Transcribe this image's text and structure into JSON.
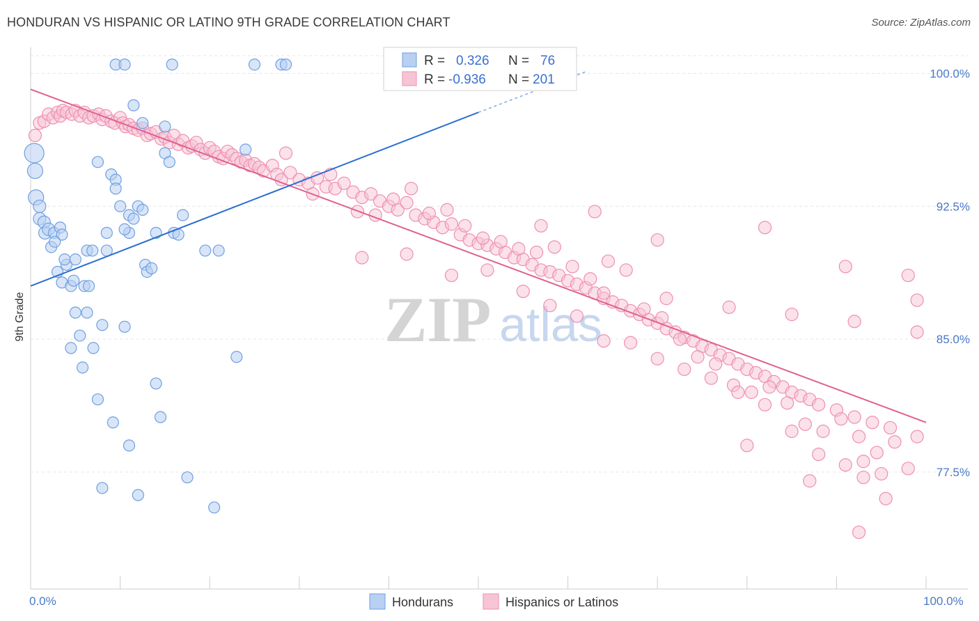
{
  "title": "HONDURAN VS HISPANIC OR LATINO 9TH GRADE CORRELATION CHART",
  "source": "Source: ZipAtlas.com",
  "watermark": {
    "zip": "ZIP",
    "atlas": "atlas"
  },
  "colors": {
    "hondurans": "#6f9fe0",
    "hondurans_fill": "#b8d0f2",
    "hondurans_line": "#2a6fd0",
    "hispanics": "#ee8fb0",
    "hispanics_fill": "#f7c4d6",
    "hispanics_line": "#e0608e",
    "grid": "#e6e6e6",
    "tick_text": "#4a78c6"
  },
  "legend": {
    "row1": {
      "r_label": "R =",
      "r_value": "0.326",
      "n_label": "N =",
      "n_value": "76"
    },
    "row2": {
      "r_label": "R =",
      "r_value": "-0.936",
      "n_label": "N =",
      "n_value": "201"
    }
  },
  "bottom_legend": {
    "hondurans": "Hondurans",
    "hispanics": "Hispanics or Latinos"
  },
  "chart_data": {
    "type": "scatter",
    "title": "HONDURAN VS HISPANIC OR LATINO 9TH GRADE CORRELATION CHART",
    "xlabel": "",
    "ylabel": "9th Grade",
    "xlim": [
      0,
      100
    ],
    "ylim": [
      70.9,
      101.0
    ],
    "x_tick_labels": [
      "0.0%",
      "100.0%"
    ],
    "y_ticks": [
      100.0,
      92.5,
      85.0,
      77.5
    ],
    "y_tick_labels": [
      "100.0%",
      "92.5%",
      "85.0%",
      "77.5%"
    ],
    "series": [
      {
        "name": "Hondurans",
        "r": 0.326,
        "n": 76,
        "trend": {
          "x": [
            0,
            50
          ],
          "y": [
            88.0,
            97.8
          ]
        },
        "trend_dashed": {
          "x": [
            50,
            62
          ],
          "y": [
            97.8,
            100.1
          ]
        },
        "points": [
          [
            0.4,
            95.5,
            14
          ],
          [
            0.5,
            94.5,
            11
          ],
          [
            0.6,
            93.0,
            11
          ],
          [
            1.0,
            92.5,
            9
          ],
          [
            1.0,
            91.8,
            9
          ],
          [
            1.5,
            91.6,
            9
          ],
          [
            1.6,
            91.0,
            9
          ],
          [
            2.0,
            91.2,
            9
          ],
          [
            2.3,
            90.2,
            8
          ],
          [
            2.6,
            91.0,
            8
          ],
          [
            3.3,
            91.3,
            8
          ],
          [
            3.5,
            90.9,
            8
          ],
          [
            2.7,
            90.5,
            8
          ],
          [
            3.0,
            88.8,
            8
          ],
          [
            4.0,
            89.2,
            8
          ],
          [
            3.8,
            89.5,
            8
          ],
          [
            3.5,
            88.2,
            8
          ],
          [
            4.5,
            88.0,
            8
          ],
          [
            4.8,
            88.3,
            8
          ],
          [
            6.0,
            88.0,
            8
          ],
          [
            6.5,
            88.0,
            8
          ],
          [
            5.0,
            89.5,
            8
          ],
          [
            6.3,
            90.0,
            8
          ],
          [
            6.9,
            90.0,
            8
          ],
          [
            7.5,
            95.0,
            8
          ],
          [
            8.5,
            91.0,
            8
          ],
          [
            8.5,
            90.0,
            8
          ],
          [
            9.0,
            94.3,
            8
          ],
          [
            9.5,
            94.0,
            8
          ],
          [
            9.5,
            93.5,
            8
          ],
          [
            10.0,
            92.5,
            8
          ],
          [
            11.0,
            92.0,
            8
          ],
          [
            11.5,
            91.8,
            8
          ],
          [
            12.0,
            92.5,
            8
          ],
          [
            12.5,
            92.3,
            8
          ],
          [
            12.8,
            89.2,
            8
          ],
          [
            13.0,
            88.8,
            8
          ],
          [
            13.5,
            89.0,
            8
          ],
          [
            14.0,
            91.0,
            8
          ],
          [
            15.0,
            95.5,
            8
          ],
          [
            15.5,
            95.0,
            8
          ],
          [
            16.0,
            91.0,
            8
          ],
          [
            16.5,
            90.9,
            8
          ],
          [
            17.0,
            92.0,
            8
          ],
          [
            19.5,
            90.0,
            8
          ],
          [
            21.0,
            90.0,
            8
          ],
          [
            23.0,
            84.0,
            8
          ],
          [
            24.0,
            95.7,
            8
          ],
          [
            11.0,
            91.0,
            8
          ],
          [
            10.5,
            91.2,
            8
          ],
          [
            5.0,
            86.5,
            8
          ],
          [
            5.5,
            85.2,
            8
          ],
          [
            6.3,
            86.5,
            8
          ],
          [
            8.0,
            85.8,
            8
          ],
          [
            10.5,
            85.7,
            8
          ],
          [
            4.5,
            84.5,
            8
          ],
          [
            7.0,
            84.5,
            8
          ],
          [
            5.8,
            83.4,
            8
          ],
          [
            14.0,
            82.5,
            8
          ],
          [
            7.5,
            81.6,
            8
          ],
          [
            14.5,
            80.6,
            8
          ],
          [
            9.2,
            80.3,
            8
          ],
          [
            11.0,
            79.0,
            8
          ],
          [
            12.0,
            76.2,
            8
          ],
          [
            20.5,
            75.5,
            8
          ],
          [
            8.0,
            76.6,
            8
          ],
          [
            17.5,
            77.2,
            8
          ],
          [
            15.0,
            97.0,
            8
          ],
          [
            12.5,
            97.2,
            8
          ],
          [
            11.5,
            98.2,
            8
          ],
          [
            9.5,
            100.5,
            8
          ],
          [
            10.5,
            100.5,
            8
          ],
          [
            15.8,
            100.5,
            8
          ],
          [
            25.0,
            100.5,
            8
          ],
          [
            28.0,
            100.5,
            8
          ],
          [
            28.5,
            100.5,
            8
          ]
        ]
      },
      {
        "name": "Hispanics or Latinos",
        "r": -0.936,
        "n": 201,
        "trend": {
          "x": [
            0,
            100
          ],
          "y": [
            99.1,
            80.3
          ]
        },
        "points": [
          [
            0.5,
            96.5
          ],
          [
            1.0,
            97.2
          ],
          [
            1.5,
            97.3
          ],
          [
            2.0,
            97.7
          ],
          [
            2.5,
            97.5
          ],
          [
            3.0,
            97.8
          ],
          [
            3.3,
            97.6
          ],
          [
            3.6,
            97.9
          ],
          [
            4.0,
            97.8
          ],
          [
            4.6,
            97.7
          ],
          [
            5.0,
            97.9
          ],
          [
            5.5,
            97.6
          ],
          [
            6.0,
            97.8
          ],
          [
            6.5,
            97.5
          ],
          [
            7.0,
            97.6
          ],
          [
            7.6,
            97.7
          ],
          [
            8.0,
            97.4
          ],
          [
            8.4,
            97.6
          ],
          [
            9.0,
            97.3
          ],
          [
            9.4,
            97.2
          ],
          [
            10.0,
            97.5
          ],
          [
            10.3,
            97.2
          ],
          [
            10.6,
            97.0
          ],
          [
            11.0,
            97.1
          ],
          [
            11.5,
            96.9
          ],
          [
            12.0,
            96.8
          ],
          [
            12.5,
            96.9
          ],
          [
            13.0,
            96.5
          ],
          [
            13.4,
            96.6
          ],
          [
            14.0,
            96.7
          ],
          [
            14.6,
            96.3
          ],
          [
            15.0,
            96.4
          ],
          [
            15.5,
            96.1
          ],
          [
            16.0,
            96.5
          ],
          [
            16.5,
            96.0
          ],
          [
            17.0,
            96.2
          ],
          [
            17.6,
            95.8
          ],
          [
            18.0,
            95.9
          ],
          [
            18.5,
            96.1
          ],
          [
            19.0,
            95.7
          ],
          [
            19.5,
            95.5
          ],
          [
            20.0,
            95.8
          ],
          [
            20.5,
            95.6
          ],
          [
            21.0,
            95.3
          ],
          [
            21.5,
            95.2
          ],
          [
            22.0,
            95.6
          ],
          [
            22.5,
            95.4
          ],
          [
            23.0,
            95.2
          ],
          [
            23.5,
            95.0
          ],
          [
            24.0,
            95.1
          ],
          [
            24.5,
            94.8
          ],
          [
            25.0,
            94.9
          ],
          [
            25.5,
            94.7
          ],
          [
            26.0,
            94.5
          ],
          [
            27.0,
            94.8
          ],
          [
            27.5,
            94.3
          ],
          [
            28.0,
            94.0
          ],
          [
            29.0,
            94.4
          ],
          [
            30.0,
            94.0
          ],
          [
            31.0,
            93.8
          ],
          [
            32.0,
            94.1
          ],
          [
            33.0,
            93.6
          ],
          [
            34.0,
            93.5
          ],
          [
            35.0,
            93.8
          ],
          [
            36.0,
            93.3
          ],
          [
            37.0,
            93.0
          ],
          [
            38.0,
            93.2
          ],
          [
            39.0,
            92.8
          ],
          [
            40.0,
            92.5
          ],
          [
            41.0,
            92.3
          ],
          [
            42.0,
            92.7
          ],
          [
            43.0,
            92.0
          ],
          [
            44.0,
            91.8
          ],
          [
            45.0,
            91.6
          ],
          [
            46.0,
            91.3
          ],
          [
            47.0,
            91.5
          ],
          [
            48.0,
            90.9
          ],
          [
            49.0,
            90.6
          ],
          [
            50.0,
            90.4
          ],
          [
            51.0,
            90.3
          ],
          [
            52.0,
            90.1
          ],
          [
            53.0,
            89.9
          ],
          [
            54.0,
            89.6
          ],
          [
            55.0,
            89.5
          ],
          [
            56.0,
            89.2
          ],
          [
            57.0,
            88.9
          ],
          [
            58.0,
            88.8
          ],
          [
            59.0,
            88.6
          ],
          [
            60.0,
            88.3
          ],
          [
            61.0,
            88.1
          ],
          [
            62.0,
            87.9
          ],
          [
            63.0,
            87.6
          ],
          [
            64.0,
            87.3
          ],
          [
            65.0,
            87.1
          ],
          [
            66.0,
            86.9
          ],
          [
            67.0,
            86.6
          ],
          [
            68.0,
            86.4
          ],
          [
            69.0,
            86.1
          ],
          [
            70.0,
            85.9
          ],
          [
            71.0,
            85.6
          ],
          [
            72.0,
            85.4
          ],
          [
            73.0,
            85.1
          ],
          [
            74.0,
            84.9
          ],
          [
            75.0,
            84.6
          ],
          [
            76.0,
            84.4
          ],
          [
            77.0,
            84.1
          ],
          [
            78.0,
            83.9
          ],
          [
            79.0,
            83.6
          ],
          [
            80.0,
            83.3
          ],
          [
            81.0,
            83.1
          ],
          [
            82.0,
            82.9
          ],
          [
            83.0,
            82.6
          ],
          [
            84.0,
            82.3
          ],
          [
            85.0,
            82.0
          ],
          [
            86.0,
            81.8
          ],
          [
            87.0,
            81.6
          ],
          [
            88.0,
            81.3
          ],
          [
            90.0,
            81.0
          ],
          [
            92.0,
            80.6
          ],
          [
            94.0,
            80.3
          ],
          [
            96.0,
            80.0
          ],
          [
            28.5,
            95.5
          ],
          [
            31.5,
            93.2
          ],
          [
            33.5,
            94.3
          ],
          [
            36.5,
            92.2
          ],
          [
            38.5,
            92.0
          ],
          [
            40.5,
            92.9
          ],
          [
            42.5,
            93.5
          ],
          [
            44.5,
            92.1
          ],
          [
            46.5,
            92.3
          ],
          [
            48.5,
            91.4
          ],
          [
            50.5,
            90.7
          ],
          [
            52.5,
            90.5
          ],
          [
            54.5,
            90.1
          ],
          [
            56.5,
            89.9
          ],
          [
            58.5,
            90.2
          ],
          [
            60.5,
            89.1
          ],
          [
            62.5,
            88.4
          ],
          [
            64.5,
            89.4
          ],
          [
            66.5,
            88.9
          ],
          [
            68.5,
            86.7
          ],
          [
            70.5,
            86.2
          ],
          [
            72.5,
            85.0
          ],
          [
            74.5,
            84.0
          ],
          [
            76.5,
            83.6
          ],
          [
            78.5,
            82.4
          ],
          [
            80.5,
            82.0
          ],
          [
            82.5,
            82.3
          ],
          [
            84.5,
            81.4
          ],
          [
            86.5,
            80.2
          ],
          [
            88.5,
            79.8
          ],
          [
            90.5,
            80.5
          ],
          [
            92.5,
            79.5
          ],
          [
            94.5,
            78.6
          ],
          [
            96.5,
            79.2
          ],
          [
            99.0,
            79.5
          ],
          [
            37.0,
            89.6
          ],
          [
            42.0,
            89.8
          ],
          [
            47.0,
            88.6
          ],
          [
            51.0,
            88.9
          ],
          [
            55.0,
            87.7
          ],
          [
            58.0,
            86.9
          ],
          [
            61.0,
            86.3
          ],
          [
            64.0,
            84.9
          ],
          [
            67.0,
            84.8
          ],
          [
            70.0,
            83.9
          ],
          [
            73.0,
            83.3
          ],
          [
            76.0,
            82.8
          ],
          [
            79.0,
            82.0
          ],
          [
            82.0,
            81.3
          ],
          [
            85.0,
            79.8
          ],
          [
            88.0,
            78.5
          ],
          [
            91.0,
            77.9
          ],
          [
            93.0,
            78.1
          ],
          [
            95.0,
            77.4
          ],
          [
            98.0,
            77.7
          ],
          [
            57.0,
            91.4
          ],
          [
            64.0,
            87.6
          ],
          [
            71.0,
            87.3
          ],
          [
            78.0,
            86.8
          ],
          [
            85.0,
            86.4
          ],
          [
            92.0,
            86.0
          ],
          [
            99.0,
            85.4
          ],
          [
            80.0,
            79.0
          ],
          [
            87.0,
            77.0
          ],
          [
            93.0,
            77.2
          ],
          [
            95.5,
            76.0
          ],
          [
            92.5,
            74.1
          ],
          [
            63.0,
            92.2
          ],
          [
            70.0,
            90.6
          ],
          [
            82.0,
            91.3
          ],
          [
            91.0,
            89.1
          ],
          [
            98.0,
            88.6
          ],
          [
            99.0,
            87.2
          ]
        ]
      }
    ]
  }
}
